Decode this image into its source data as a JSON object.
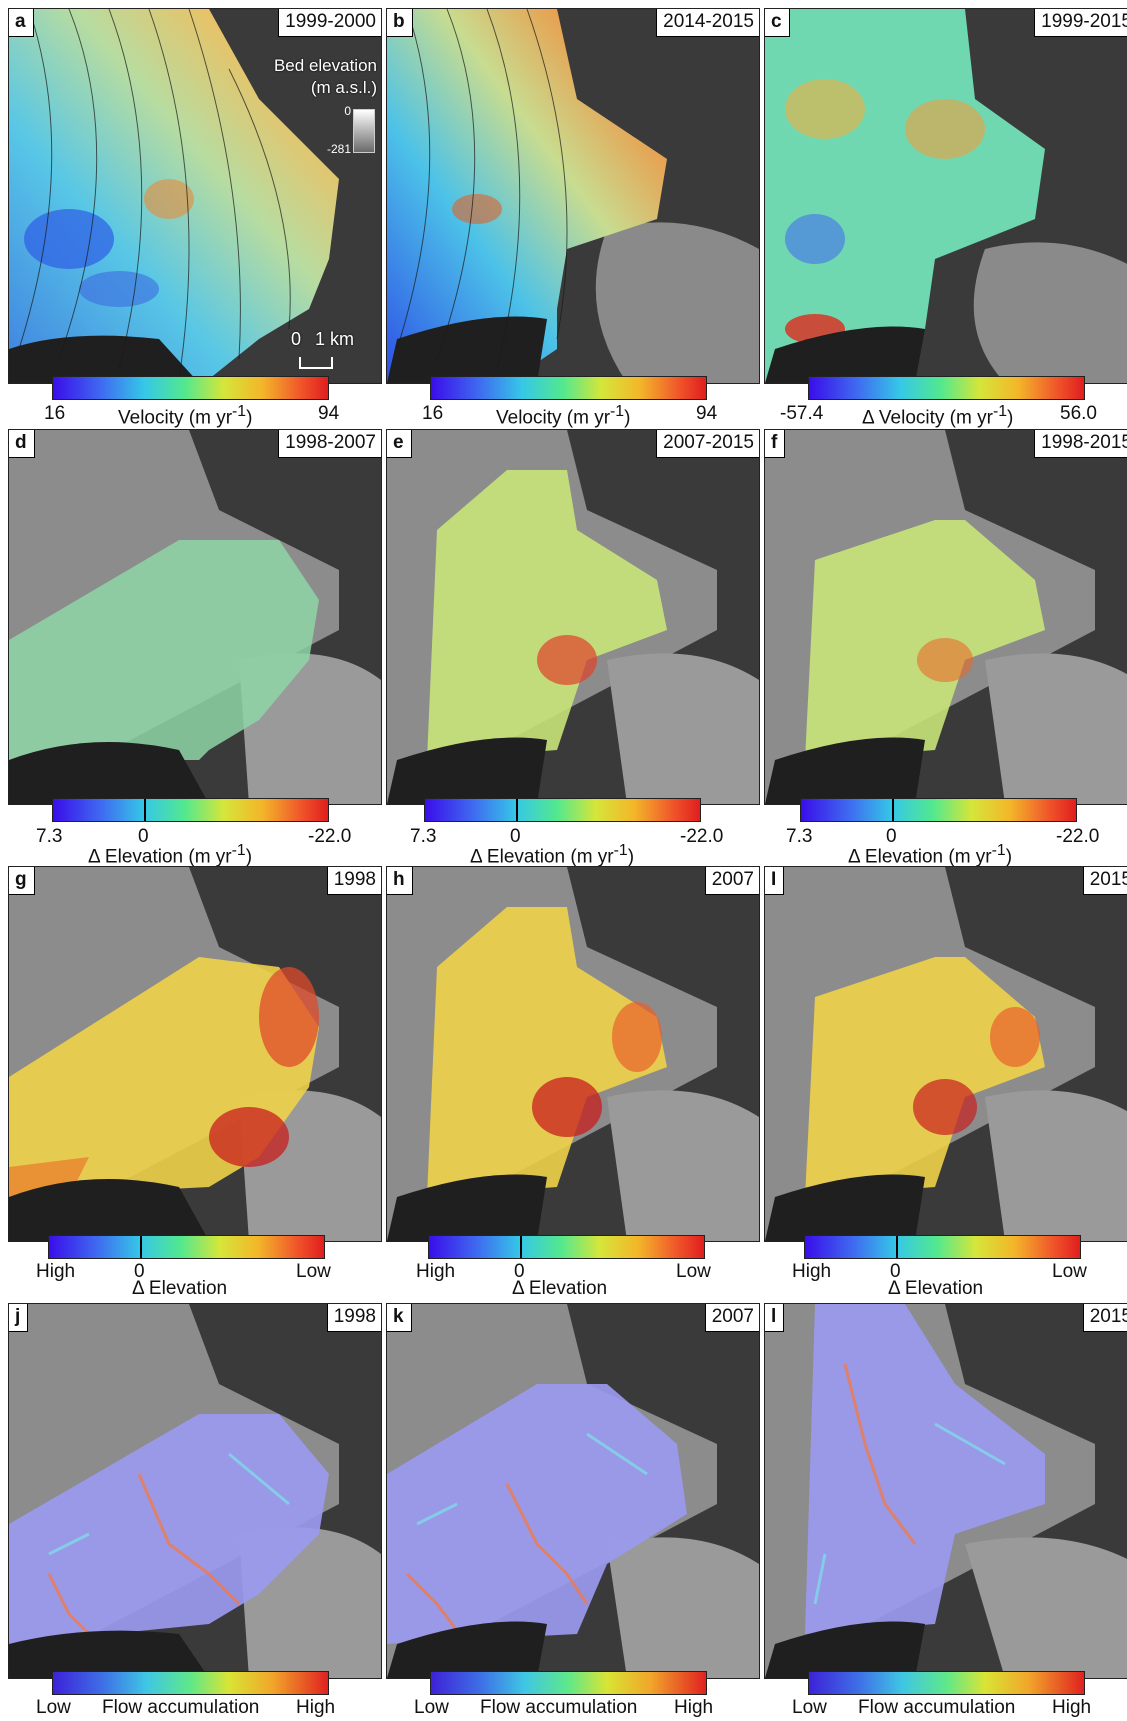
{
  "panels": [
    {
      "tag": "a",
      "period": "1999-2000"
    },
    {
      "tag": "b",
      "period": "2014-2015"
    },
    {
      "tag": "c",
      "period": "1999-2015"
    },
    {
      "tag": "d",
      "period": "1998-2007"
    },
    {
      "tag": "e",
      "period": "2007-2015"
    },
    {
      "tag": "f",
      "period": "1998-2015"
    },
    {
      "tag": "g",
      "period": "1998"
    },
    {
      "tag": "h",
      "period": "2007"
    },
    {
      "tag": "I",
      "period": "2015"
    },
    {
      "tag": "j",
      "period": "1998"
    },
    {
      "tag": "k",
      "period": "2007"
    },
    {
      "tag": "l",
      "period": "2015"
    }
  ],
  "bed_legend": {
    "title_line1": "Bed elevation",
    "title_line2": "(m a.s.l.)",
    "max": "0",
    "min": "-281"
  },
  "scale": {
    "zero": "0",
    "one": "1 km"
  },
  "colorbars": {
    "velocity": [
      {
        "min": "16",
        "label": "Velocity (m yr",
        "exp": "-1",
        "close": ")",
        "max": "94"
      },
      {
        "min": "16",
        "label": "Velocity (m yr",
        "exp": "-1",
        "close": ")",
        "max": "94"
      },
      {
        "min": "-57.4",
        "label": "Δ Velocity (m yr",
        "exp": "-1",
        "close": ")",
        "max": "56.0"
      }
    ],
    "elev_change": [
      {
        "min": "7.3",
        "zero": "0",
        "label": "Δ Elevation (m yr",
        "exp": "-1",
        "close": ")",
        "max": "-22.0"
      },
      {
        "min": "7.3",
        "zero": "0",
        "label": "Δ Elevation (m yr",
        "exp": "-1",
        "close": ")",
        "max": "-22.0"
      },
      {
        "min": "7.3",
        "zero": "0",
        "label": "Δ Elevation (m yr",
        "exp": "-1",
        "close": ")",
        "max": "-22.0"
      }
    ],
    "elev_rel": [
      {
        "min": "High",
        "zero": "0",
        "label": "Δ Elevation",
        "max": "Low"
      },
      {
        "min": "High",
        "zero": "0",
        "label": "Δ Elevation",
        "max": "Low"
      },
      {
        "min": "High",
        "zero": "0",
        "label": "Δ Elevation",
        "max": "Low"
      }
    ],
    "flow": [
      {
        "min": "Low",
        "label": "Flow accumulation",
        "max": "High"
      },
      {
        "min": "Low",
        "label": "Flow accumulation",
        "max": "High"
      },
      {
        "min": "Low",
        "label": "Flow accumulation",
        "max": "High"
      }
    ]
  }
}
